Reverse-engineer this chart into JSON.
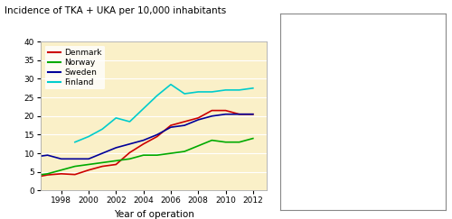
{
  "title": "Incidence of TKA + UKA per 10,000 inhabitants",
  "xlabel": "Year of operation",
  "ylabel": "",
  "bg_color": "#FAF0C8",
  "ylim": [
    0,
    40
  ],
  "yticks": [
    0,
    5,
    10,
    15,
    20,
    25,
    30,
    35,
    40
  ],
  "xticks": [
    1998,
    2000,
    2002,
    2004,
    2006,
    2008,
    2010,
    2012
  ],
  "xlim": [
    1996.5,
    2013.0
  ],
  "series": {
    "Denmark": {
      "color": "#CC0000",
      "x": [
        1996,
        1997,
        1998,
        1999,
        2000,
        2001,
        2002,
        2003,
        2004,
        2005,
        2006,
        2007,
        2008,
        2009,
        2010,
        2011,
        2012
      ],
      "y": [
        3.5,
        4.2,
        4.5,
        4.3,
        5.5,
        6.5,
        7.0,
        10.2,
        12.5,
        14.5,
        17.5,
        18.5,
        19.5,
        21.5,
        21.5,
        20.5,
        20.5
      ]
    },
    "Norway": {
      "color": "#00AA00",
      "x": [
        1996,
        1997,
        1998,
        1999,
        2000,
        2001,
        2002,
        2003,
        2004,
        2005,
        2006,
        2007,
        2008,
        2009,
        2010,
        2011,
        2012
      ],
      "y": [
        4.0,
        4.5,
        5.5,
        6.5,
        7.0,
        7.5,
        8.0,
        8.5,
        9.5,
        9.5,
        10.0,
        10.5,
        12.0,
        13.5,
        13.0,
        13.0,
        14.0
      ]
    },
    "Sweden": {
      "color": "#000099",
      "x": [
        1996,
        1997,
        1998,
        1999,
        2000,
        2001,
        2002,
        2003,
        2004,
        2005,
        2006,
        2007,
        2008,
        2009,
        2010,
        2011,
        2012
      ],
      "y": [
        9.0,
        9.5,
        8.5,
        8.5,
        8.5,
        10.0,
        11.5,
        12.5,
        13.5,
        15.0,
        17.0,
        17.5,
        19.0,
        20.0,
        20.5,
        20.5,
        20.5
      ]
    },
    "Finland": {
      "color": "#00CCCC",
      "x": [
        1999,
        2000,
        2001,
        2002,
        2003,
        2004,
        2005,
        2006,
        2007,
        2008,
        2009,
        2010,
        2011,
        2012
      ],
      "y": [
        13.0,
        14.5,
        16.5,
        19.5,
        18.5,
        22.0,
        25.5,
        28.5,
        26.0,
        26.5,
        26.5,
        27.0,
        27.0,
        27.5
      ]
    }
  },
  "legend_order": [
    "Denmark",
    "Norway",
    "Sweden",
    "Finland"
  ]
}
